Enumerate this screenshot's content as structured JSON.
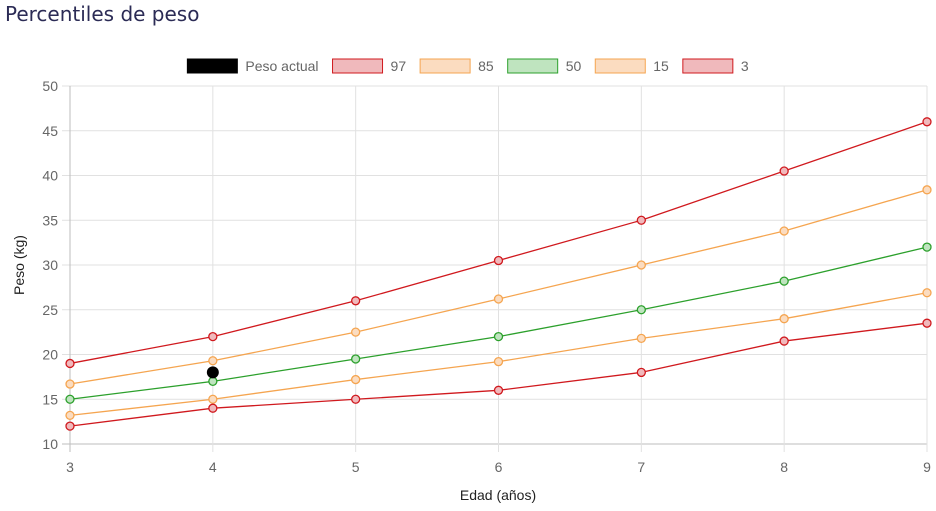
{
  "page": {
    "title": "Percentiles de peso"
  },
  "chart_data": {
    "type": "line",
    "xlabel": "Edad (años)",
    "ylabel": "Peso (kg)",
    "x": [
      3,
      4,
      5,
      6,
      7,
      8,
      9
    ],
    "xlim": [
      3,
      9
    ],
    "ylim": [
      10,
      50
    ],
    "y_ticks": [
      10,
      15,
      20,
      25,
      30,
      35,
      40,
      45,
      50
    ],
    "grid": true,
    "legend_position": "top",
    "current_weight": {
      "name": "Peso actual",
      "x": 4,
      "y": 18,
      "color": "#000000"
    },
    "series": [
      {
        "name": "97",
        "color": "#d0191e",
        "fill": "#f0b9bc",
        "values": [
          19,
          22,
          26,
          30.5,
          35,
          40.5,
          46
        ]
      },
      {
        "name": "85",
        "color": "#f5a550",
        "fill": "#fbdcc0",
        "values": [
          16.7,
          19.3,
          22.5,
          26.2,
          30,
          33.8,
          38.4
        ]
      },
      {
        "name": "50",
        "color": "#2ca02c",
        "fill": "#bfe4bf",
        "values": [
          15,
          17,
          19.5,
          22,
          25,
          28.2,
          32
        ]
      },
      {
        "name": "15",
        "color": "#f5a550",
        "fill": "#fbdcc0",
        "values": [
          13.2,
          15,
          17.2,
          19.2,
          21.8,
          24,
          26.9
        ]
      },
      {
        "name": "3",
        "color": "#d0191e",
        "fill": "#f0b9bc",
        "values": [
          12,
          14,
          15,
          16,
          18,
          21.5,
          23.5
        ]
      }
    ]
  }
}
